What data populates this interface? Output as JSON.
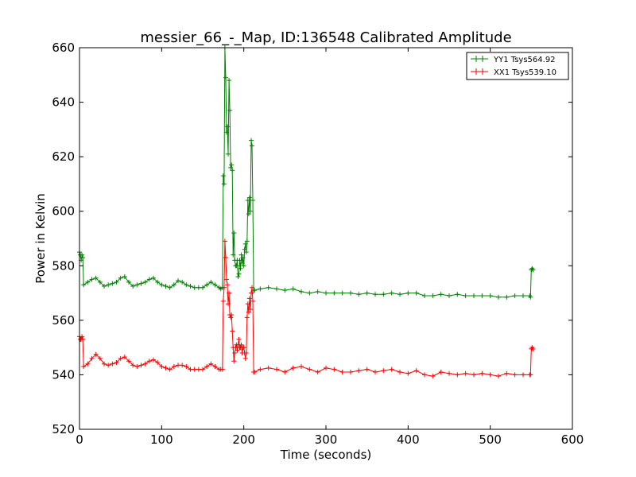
{
  "chart_data": {
    "type": "line",
    "title": "messier_66_-_Map, ID:136548 Calibrated Amplitude",
    "xlabel": "Time (seconds)",
    "ylabel": "Power in Kelvin",
    "xlim": [
      0,
      600
    ],
    "ylim": [
      520,
      660
    ],
    "xticks": [
      "0",
      "100",
      "200",
      "300",
      "400",
      "500",
      "600"
    ],
    "yticks": [
      "520",
      "540",
      "560",
      "580",
      "600",
      "620",
      "640",
      "660"
    ],
    "grid": false,
    "legend_position": "top-right",
    "series": [
      {
        "name": "YY1 Tsys564.92",
        "color": "#008000",
        "marker": "+",
        "points": [
          [
            0,
            585
          ],
          [
            1,
            584
          ],
          [
            2,
            582
          ],
          [
            3,
            584
          ],
          [
            4,
            583
          ],
          [
            5,
            573
          ],
          [
            10,
            574
          ],
          [
            15,
            575
          ],
          [
            20,
            575.5
          ],
          [
            25,
            574
          ],
          [
            30,
            572.5
          ],
          [
            35,
            573
          ],
          [
            40,
            573.5
          ],
          [
            45,
            574
          ],
          [
            50,
            575.5
          ],
          [
            55,
            576
          ],
          [
            60,
            574
          ],
          [
            65,
            572.5
          ],
          [
            70,
            573
          ],
          [
            75,
            573.5
          ],
          [
            80,
            574
          ],
          [
            85,
            575
          ],
          [
            90,
            575.5
          ],
          [
            95,
            574
          ],
          [
            100,
            573
          ],
          [
            105,
            572.5
          ],
          [
            110,
            572
          ],
          [
            115,
            573
          ],
          [
            120,
            574.5
          ],
          [
            125,
            574
          ],
          [
            130,
            573
          ],
          [
            135,
            572.5
          ],
          [
            140,
            572
          ],
          [
            145,
            572
          ],
          [
            150,
            572
          ],
          [
            155,
            573
          ],
          [
            160,
            574
          ],
          [
            165,
            573
          ],
          [
            170,
            572
          ],
          [
            172,
            571.5
          ],
          [
            174,
            572
          ],
          [
            175,
            613
          ],
          [
            176,
            610
          ],
          [
            177,
            660
          ],
          [
            178,
            649
          ],
          [
            179,
            629
          ],
          [
            180,
            631
          ],
          [
            181,
            621
          ],
          [
            182,
            648
          ],
          [
            183,
            637
          ],
          [
            184,
            616
          ],
          [
            185,
            617
          ],
          [
            186,
            615
          ],
          [
            187,
            584
          ],
          [
            188,
            592
          ],
          [
            189,
            582
          ],
          [
            190,
            580
          ],
          [
            191,
            580
          ],
          [
            192,
            582
          ],
          [
            193,
            576
          ],
          [
            194,
            577
          ],
          [
            195,
            582
          ],
          [
            196,
            579
          ],
          [
            197,
            584
          ],
          [
            198,
            581
          ],
          [
            199,
            583
          ],
          [
            200,
            580
          ],
          [
            201,
            586
          ],
          [
            202,
            588
          ],
          [
            203,
            585
          ],
          [
            204,
            589
          ],
          [
            205,
            604
          ],
          [
            206,
            599
          ],
          [
            207,
            605
          ],
          [
            208,
            600
          ],
          [
            209,
            626
          ],
          [
            210,
            624
          ],
          [
            211,
            604
          ],
          [
            212,
            571
          ],
          [
            213,
            571
          ],
          [
            220,
            571.5
          ],
          [
            230,
            572
          ],
          [
            240,
            571.5
          ],
          [
            250,
            571
          ],
          [
            260,
            571.5
          ],
          [
            270,
            570.5
          ],
          [
            280,
            570
          ],
          [
            290,
            570.5
          ],
          [
            300,
            570
          ],
          [
            310,
            570
          ],
          [
            320,
            570
          ],
          [
            330,
            570
          ],
          [
            340,
            569.5
          ],
          [
            350,
            570
          ],
          [
            360,
            569.5
          ],
          [
            370,
            569.5
          ],
          [
            380,
            570
          ],
          [
            390,
            569.5
          ],
          [
            400,
            570
          ],
          [
            410,
            570
          ],
          [
            420,
            569
          ],
          [
            430,
            569
          ],
          [
            440,
            569.5
          ],
          [
            450,
            569
          ],
          [
            460,
            569.5
          ],
          [
            470,
            569
          ],
          [
            480,
            569
          ],
          [
            490,
            569
          ],
          [
            500,
            569
          ],
          [
            510,
            568.5
          ],
          [
            520,
            568.5
          ],
          [
            530,
            569
          ],
          [
            540,
            569
          ],
          [
            548,
            569
          ],
          [
            549,
            568.5
          ],
          [
            550,
            578.5
          ],
          [
            551,
            579
          ],
          [
            552,
            578.5
          ]
        ]
      },
      {
        "name": "XX1 Tsys539.10",
        "color": "#ff0000",
        "marker": "+",
        "points": [
          [
            0,
            554
          ],
          [
            1,
            553
          ],
          [
            2,
            553
          ],
          [
            3,
            554
          ],
          [
            4,
            553
          ],
          [
            5,
            543
          ],
          [
            10,
            544
          ],
          [
            15,
            546
          ],
          [
            20,
            547.5
          ],
          [
            25,
            546
          ],
          [
            30,
            544
          ],
          [
            35,
            543.5
          ],
          [
            40,
            544
          ],
          [
            45,
            544.5
          ],
          [
            50,
            546
          ],
          [
            55,
            546.5
          ],
          [
            60,
            545
          ],
          [
            65,
            543.5
          ],
          [
            70,
            543
          ],
          [
            75,
            543.5
          ],
          [
            80,
            544
          ],
          [
            85,
            545
          ],
          [
            90,
            545.5
          ],
          [
            95,
            544.5
          ],
          [
            100,
            543
          ],
          [
            105,
            542.5
          ],
          [
            110,
            542
          ],
          [
            115,
            543
          ],
          [
            120,
            543.5
          ],
          [
            125,
            543.5
          ],
          [
            130,
            543
          ],
          [
            135,
            542
          ],
          [
            140,
            542
          ],
          [
            145,
            542
          ],
          [
            150,
            542
          ],
          [
            155,
            543
          ],
          [
            160,
            544
          ],
          [
            165,
            543
          ],
          [
            170,
            542
          ],
          [
            172,
            542
          ],
          [
            174,
            542
          ],
          [
            175,
            567
          ],
          [
            176,
            572
          ],
          [
            177,
            589
          ],
          [
            178,
            583
          ],
          [
            179,
            575
          ],
          [
            180,
            573
          ],
          [
            181,
            566
          ],
          [
            182,
            570
          ],
          [
            183,
            562
          ],
          [
            184,
            561
          ],
          [
            185,
            562
          ],
          [
            186,
            556
          ],
          [
            187,
            550
          ],
          [
            188,
            545
          ],
          [
            189,
            548
          ],
          [
            190,
            550
          ],
          [
            191,
            551
          ],
          [
            192,
            549
          ],
          [
            193,
            551
          ],
          [
            194,
            553
          ],
          [
            195,
            550
          ],
          [
            196,
            550
          ],
          [
            197,
            551
          ],
          [
            198,
            548
          ],
          [
            199,
            550
          ],
          [
            200,
            550
          ],
          [
            201,
            548
          ],
          [
            202,
            546
          ],
          [
            203,
            548
          ],
          [
            204,
            561
          ],
          [
            205,
            566
          ],
          [
            206,
            563
          ],
          [
            207,
            568
          ],
          [
            208,
            564
          ],
          [
            209,
            570
          ],
          [
            210,
            572
          ],
          [
            211,
            567
          ],
          [
            212,
            541
          ],
          [
            213,
            541
          ],
          [
            220,
            542
          ],
          [
            230,
            542.5
          ],
          [
            240,
            542
          ],
          [
            250,
            541
          ],
          [
            260,
            542.5
          ],
          [
            270,
            543
          ],
          [
            280,
            542
          ],
          [
            290,
            541
          ],
          [
            300,
            542.5
          ],
          [
            310,
            542
          ],
          [
            320,
            541
          ],
          [
            330,
            541
          ],
          [
            340,
            541.5
          ],
          [
            350,
            542
          ],
          [
            360,
            541
          ],
          [
            370,
            541.5
          ],
          [
            380,
            542
          ],
          [
            390,
            541
          ],
          [
            400,
            540.5
          ],
          [
            410,
            541.5
          ],
          [
            420,
            540
          ],
          [
            430,
            539.5
          ],
          [
            440,
            541
          ],
          [
            450,
            540.5
          ],
          [
            460,
            540
          ],
          [
            470,
            540.5
          ],
          [
            480,
            540
          ],
          [
            490,
            540.5
          ],
          [
            500,
            540
          ],
          [
            510,
            539.5
          ],
          [
            520,
            540.5
          ],
          [
            530,
            540
          ],
          [
            540,
            540
          ],
          [
            548,
            540
          ],
          [
            549,
            540
          ],
          [
            550,
            549.5
          ],
          [
            551,
            550
          ],
          [
            552,
            549.5
          ]
        ]
      }
    ]
  }
}
